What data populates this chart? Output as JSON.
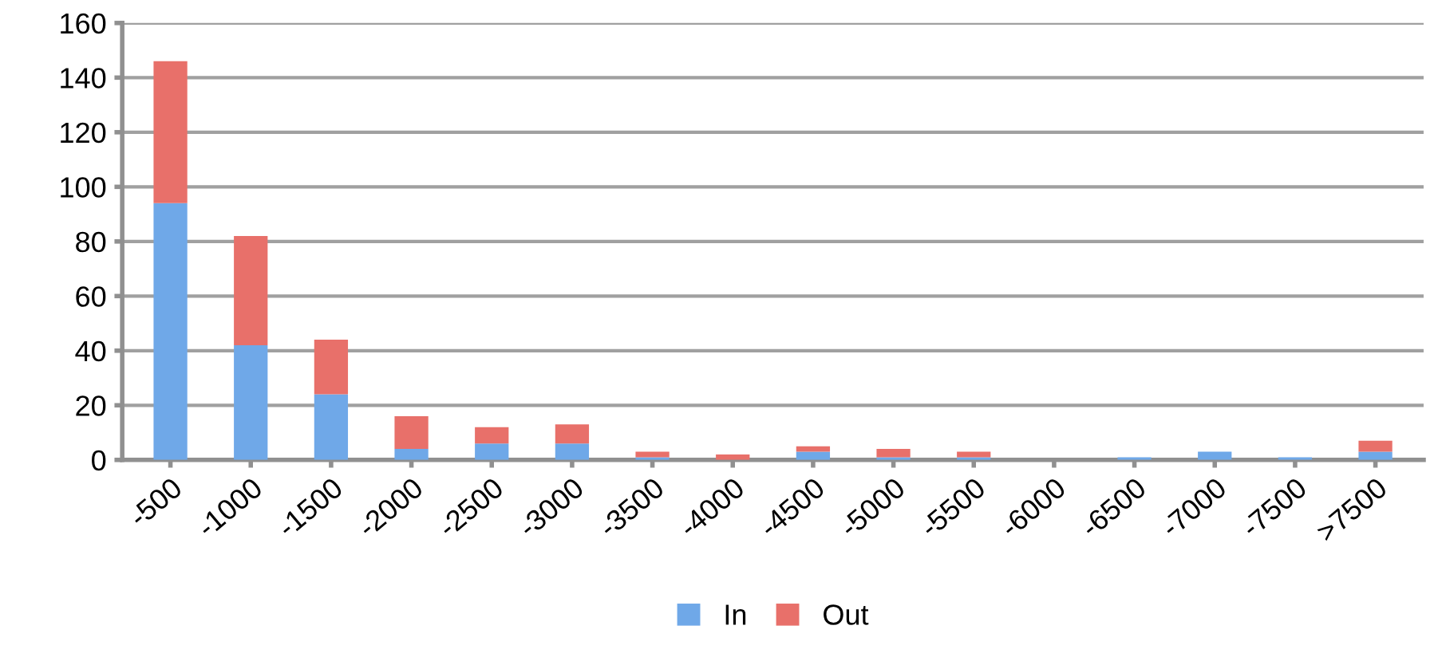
{
  "chart_data": {
    "type": "bar",
    "stacked": true,
    "categories": [
      "-500",
      "-1000",
      "-1500",
      "-2000",
      "-2500",
      "-3000",
      "-3500",
      "-4000",
      "-4500",
      "-5000",
      "-5500",
      "-6000",
      "-6500",
      "-7000",
      "-7500",
      ">7500"
    ],
    "series": [
      {
        "name": "In",
        "color": "#6fa8e8",
        "values": [
          94,
          42,
          24,
          4,
          6,
          6,
          1,
          0,
          3,
          1,
          1,
          0,
          1,
          3,
          1,
          3
        ]
      },
      {
        "name": "Out",
        "color": "#e8706a",
        "values": [
          52,
          40,
          20,
          12,
          6,
          7,
          2,
          2,
          2,
          3,
          2,
          0,
          0,
          0,
          0,
          4
        ]
      }
    ],
    "ylim": [
      0,
      160
    ],
    "yticks": [
      0,
      20,
      40,
      60,
      80,
      100,
      120,
      140,
      160
    ],
    "grid": "y",
    "legend": "bottom"
  }
}
